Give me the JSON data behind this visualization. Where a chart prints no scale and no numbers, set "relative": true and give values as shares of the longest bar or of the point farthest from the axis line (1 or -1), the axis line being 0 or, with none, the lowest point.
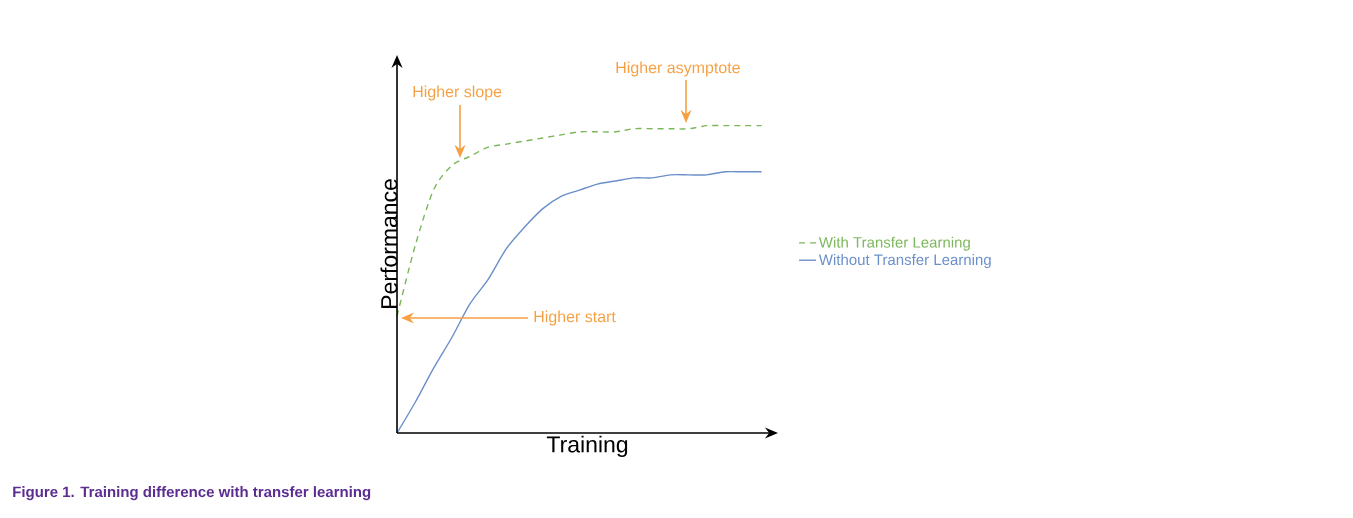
{
  "chart_data": {
    "type": "line",
    "title": "Figure 1.  Training difference with transfer learning",
    "xlabel": "Training",
    "ylabel": "Performance",
    "relative": true,
    "legend": "right",
    "categories": [
      null,
      null,
      null,
      null,
      null,
      null,
      null,
      null,
      null,
      null,
      null,
      null,
      null,
      null,
      null,
      null,
      null,
      null,
      null,
      null,
      null
    ],
    "series": [
      {
        "name": "With Transfer Learning",
        "color": "#7cb65a",
        "line_style": "dashed",
        "values": [
          0.38,
          0.61,
          0.79,
          0.87,
          0.9,
          0.93,
          0.94,
          0.95,
          0.96,
          0.97,
          0.98,
          0.98,
          0.98,
          0.99,
          0.99,
          0.99,
          0.99,
          1.0,
          1.0,
          1.0,
          1.0
        ]
      },
      {
        "name": "Without Transfer Learning",
        "color": "#6b8fc9",
        "line_style": "solid",
        "values": [
          0,
          0.1,
          0.21,
          0.31,
          0.42,
          0.5,
          0.6,
          0.67,
          0.73,
          0.77,
          0.79,
          0.81,
          0.82,
          0.83,
          0.83,
          0.84,
          0.84,
          0.84,
          0.85,
          0.85,
          0.85
        ]
      }
    ],
    "annotations": [
      "Higher slope",
      "Higher asymptote",
      "Higher start"
    ]
  }
}
